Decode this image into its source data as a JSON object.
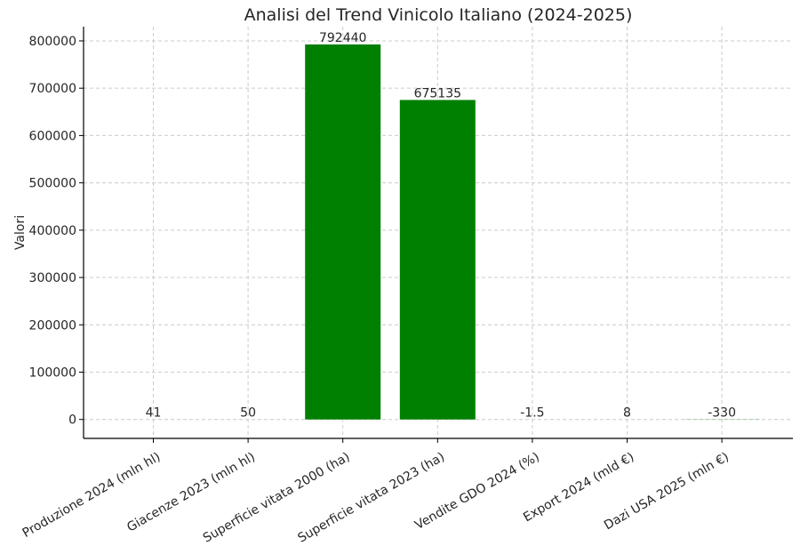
{
  "chart_data": {
    "type": "bar",
    "title": "Analisi del Trend Vinicolo Italiano (2024-2025)",
    "xlabel": "",
    "ylabel": "Valori",
    "categories": [
      "Produzione 2024 (mln hl)",
      "Giacenze 2023 (mln hl)",
      "Superficie vitata 2000 (ha)",
      "Superficie vitata 2023 (ha)",
      "Vendite GDO 2024 (%)",
      "Export 2024 (mld €)",
      "Dazi USA 2025 (mln €)"
    ],
    "values": [
      41,
      50,
      792440,
      675135,
      -1.5,
      8,
      -330
    ],
    "data_labels": [
      "41",
      "50",
      "792440",
      "675135",
      "-1.5",
      "8",
      "-330"
    ],
    "ylim": [
      -40000,
      830000
    ],
    "yticks": [
      0,
      100000,
      200000,
      300000,
      400000,
      500000,
      600000,
      700000,
      800000
    ],
    "ytick_labels": [
      "0",
      "100000",
      "200000",
      "300000",
      "400000",
      "500000",
      "600000",
      "700000",
      "800000"
    ],
    "bar_color": "#008000",
    "grid": true
  }
}
